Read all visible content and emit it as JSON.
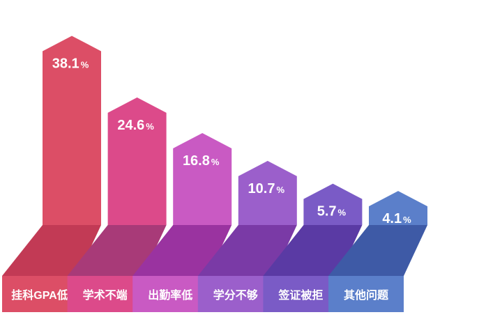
{
  "chart_data": {
    "type": "bar",
    "categories": [
      "挂科GPA低",
      "学术不端",
      "出勤率低",
      "学分不够",
      "签证被拒",
      "其他问题"
    ],
    "values": [
      38.1,
      24.6,
      16.8,
      10.7,
      5.7,
      4.1
    ],
    "value_labels": [
      "38.1",
      "24.6",
      "16.8",
      "10.7",
      "5.7",
      "4.1"
    ],
    "unit": "%",
    "colors": [
      "#dc4e66",
      "#dc4a8a",
      "#c95ac3",
      "#9b5fcb",
      "#7a5bc6",
      "#5b7fca"
    ],
    "dark_colors": [
      "#c23a55",
      "#a83a78",
      "#9a33a0",
      "#7a3aa6",
      "#5a3aa4",
      "#3e5aa6"
    ],
    "grid": false,
    "legend": "none"
  }
}
